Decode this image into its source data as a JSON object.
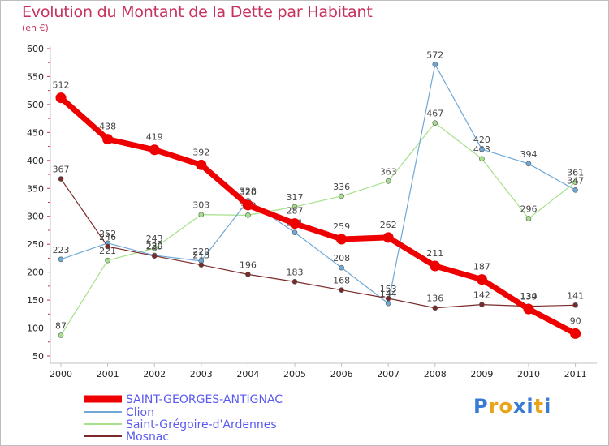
{
  "header": {
    "title": "Evolution du Montant de la Dette par Habitant",
    "unit": "(en €)"
  },
  "logo": {
    "text": "Proxiti"
  },
  "chart_data": {
    "type": "line",
    "title": "Evolution du Montant de la Dette par Habitant",
    "ylabel": "(en €)",
    "xlabel": "",
    "x": [
      "2000",
      "2001",
      "2002",
      "2003",
      "2004",
      "2005",
      "2006",
      "2007",
      "2008",
      "2009",
      "2010",
      "2011"
    ],
    "yticks": [
      50,
      100,
      150,
      200,
      250,
      300,
      350,
      400,
      450,
      500,
      550,
      600
    ],
    "ylim": [
      50,
      600
    ],
    "grid": false,
    "legend": "bottom-left",
    "series": [
      {
        "name": "SAINT-GEORGES-ANTIGNAC",
        "color": "#ee0000",
        "values": [
          512,
          438,
          419,
          392,
          320,
          287,
          259,
          262,
          211,
          187,
          134,
          90
        ]
      },
      {
        "name": "Clion",
        "color": "#6fa8d6",
        "values": [
          223,
          252,
          230,
          220,
          328,
          271,
          208,
          144,
          572,
          420,
          394,
          347
        ]
      },
      {
        "name": "Saint-Grégoire-d'Ardennes",
        "color": "#a6e08a",
        "values": [
          87,
          221,
          243,
          303,
          302,
          317,
          336,
          363,
          467,
          403,
          296,
          361
        ]
      },
      {
        "name": "Mosnac",
        "color": "#7a2a2a",
        "values": [
          367,
          246,
          229,
          213,
          196,
          183,
          168,
          153,
          136,
          142,
          139,
          141
        ]
      }
    ]
  }
}
